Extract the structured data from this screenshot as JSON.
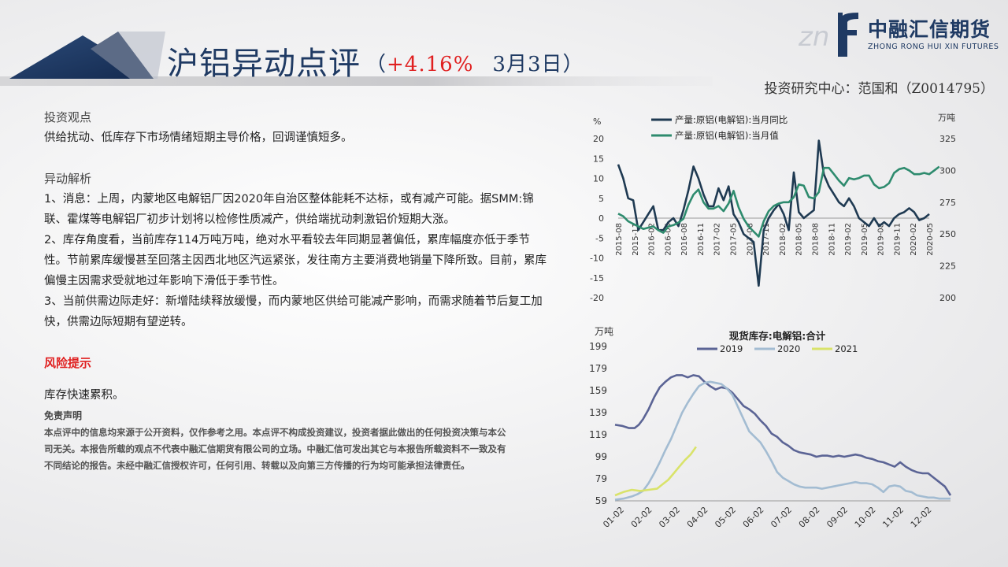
{
  "header": {
    "title": "沪铝异动点评",
    "paren_open": "（",
    "change_pct": "+4.16%",
    "date": "3月3日）",
    "author": "投资研究中心：范国和（Z0014795）",
    "logo_zh": "中融汇信期货",
    "logo_en": "ZHONG RONG HUI XIN FUTURES"
  },
  "content": {
    "view_title": "投资观点",
    "view_text": "供给扰动、低库存下市场情绪短期主导价格，回调谨慎短多。",
    "analysis_title": "异动解析",
    "analysis_1": "1、消息：上周，内蒙地区电解铝厂因2020年自治区整体能耗不达标，或有减产可能。据SMM:锦联、霍煤等电解铝厂初步计划将以检修性质减产，供给端扰动刺激铝价短期大涨。",
    "analysis_2": "2、库存角度看，当前库存114万吨万吨，绝对水平看较去年同期显著偏低，累库幅度亦低于季节性。节前累库缓慢甚至回落主因西北地区汽运紧张，发往南方主要消费地销量下降所致。目前，累库偏慢主因需求受就地过年影响下滑低于季节性。",
    "analysis_3": "3、当前供需边际走好：新增陆续释放缓慢，而内蒙地区供给可能减产影响，而需求随着节后复工加快，供需边际短期有望逆转。",
    "risk_title": "风险提示",
    "risk_text": "库存快速累积。",
    "disclaimer_title": "免责声明",
    "disclaimer_text": "本点评中的信息均来源于公开资料，仅作参考之用。本点评不构成投资建议，投资者据此做出的任何投资决策与本公司无关。本报告所载的观点不代表中融汇信期货有限公司的立场。中融汇信可发出其它与本报告所载资料不一致及有不同结论的报告。未经中融汇信授权许可，任何引用、转载以及向第三方传播的行为均可能承担法律责任。"
  },
  "colors": {
    "dark_navy": "#1f3a52",
    "teal": "#2e8b6e",
    "y2019": "#5b6495",
    "y2020": "#a3bcd2",
    "y2021": "#d9e36a",
    "title_blue": "#1f3a63",
    "red": "#e02020"
  },
  "chart_data": [
    {
      "type": "line",
      "title": "",
      "yleft_label": "%",
      "yright_label": "万吨",
      "yleft_lim": [
        -20,
        20
      ],
      "yleft_ticks": [
        -20,
        -15,
        -10,
        -5,
        0,
        5,
        10,
        15,
        20
      ],
      "yright_lim": [
        200,
        325
      ],
      "yright_ticks": [
        200,
        225,
        250,
        275,
        300,
        325
      ],
      "x_tick_labels": [
        "2015-08",
        "2015-11",
        "2016-02",
        "2016-05",
        "2016-08",
        "2016-11",
        "2017-02",
        "2017-05",
        "2017-08",
        "2017-11",
        "2018-02",
        "2018-05",
        "2018-08",
        "2018-11",
        "2019-02",
        "2019-05",
        "2019-08",
        "2019-11",
        "2020-02",
        "2020-05"
      ],
      "series": [
        {
          "name": "产量:原铝(电解铝):当月同比",
          "axis": "left",
          "color": "#1f3a52",
          "values": [
            13.5,
            10,
            5,
            4.5,
            -3,
            -1,
            1,
            3,
            -3,
            -3,
            -1,
            0,
            -2,
            2,
            7,
            13,
            10,
            6,
            3,
            3,
            7.5,
            4.5,
            8,
            1,
            -1,
            -4,
            -5,
            -6,
            -17,
            -3,
            0,
            2,
            3.5,
            1,
            -3,
            11.5,
            1.5,
            0,
            1,
            2,
            19.5,
            11,
            8,
            6,
            4,
            3,
            5,
            3,
            0,
            -1,
            -2,
            0,
            -2,
            -1,
            -2,
            0,
            1,
            1.5,
            2.5,
            1.5,
            -0.5,
            0,
            1
          ]
        },
        {
          "name": "产量:原铝(电解铝):当月值",
          "axis": "right",
          "color": "#2e8b6e",
          "values": [
            266,
            264,
            260,
            258,
            256,
            254,
            255,
            256,
            253,
            251,
            256,
            257,
            259,
            262,
            273,
            281,
            285,
            275,
            270,
            270,
            272,
            268,
            274,
            284,
            271,
            262,
            256,
            252,
            248,
            260,
            268,
            272,
            274,
            275,
            275,
            279,
            289,
            288,
            279,
            278,
            283,
            302,
            302,
            297,
            292,
            288,
            294,
            293,
            294,
            296,
            296,
            289,
            286,
            287,
            290,
            298,
            301,
            302,
            300,
            297,
            297,
            298,
            297,
            300,
            303
          ]
        }
      ]
    },
    {
      "type": "line",
      "title": "现货库存:电解铝:合计",
      "ylabel": "万吨",
      "ylim": [
        59,
        199
      ],
      "yticks": [
        59,
        79,
        99,
        119,
        139,
        159,
        179,
        199
      ],
      "x_tick_labels": [
        "01-02",
        "02-02",
        "03-02",
        "04-02",
        "05-02",
        "06-02",
        "07-02",
        "08-02",
        "09-02",
        "10-02",
        "11-02",
        "12-02"
      ],
      "x_range": [
        0,
        12
      ],
      "series": [
        {
          "name": "2019",
          "color": "#5b6495",
          "x": [
            0,
            0.25,
            0.5,
            0.7,
            0.85,
            1.0,
            1.2,
            1.4,
            1.6,
            1.8,
            2.0,
            2.2,
            2.4,
            2.6,
            2.8,
            3.0,
            3.2,
            3.4,
            3.6,
            3.8,
            4.0,
            4.2,
            4.4,
            4.6,
            4.8,
            5.0,
            5.2,
            5.4,
            5.6,
            5.8,
            6.0,
            6.2,
            6.4,
            6.6,
            6.8,
            7.0,
            7.2,
            7.4,
            7.6,
            7.8,
            8.0,
            8.2,
            8.4,
            8.6,
            8.8,
            9.0,
            9.2,
            9.4,
            9.6,
            9.8,
            10.0,
            10.2,
            10.4,
            10.6,
            10.8,
            11.0,
            11.2,
            11.4,
            11.6,
            11.8,
            12.0
          ],
          "values": [
            128,
            127,
            125,
            125,
            128,
            133,
            142,
            153,
            162,
            167,
            171,
            173,
            173,
            171,
            173,
            172,
            167,
            163,
            160,
            162,
            161,
            157,
            151,
            145,
            142,
            138,
            132,
            127,
            120,
            117,
            112,
            109,
            105,
            103,
            102,
            101,
            99,
            100,
            100,
            99,
            100,
            99,
            100,
            101,
            100,
            98,
            97,
            95,
            94,
            92,
            90,
            94,
            90,
            87,
            85,
            84,
            84,
            80,
            76,
            72,
            64
          ]
        },
        {
          "name": "2020",
          "color": "#a3bcd2",
          "x": [
            0,
            0.3,
            0.6,
            0.8,
            1.0,
            1.2,
            1.4,
            1.6,
            1.8,
            2.0,
            2.2,
            2.4,
            2.6,
            2.8,
            3.0,
            3.2,
            3.4,
            3.6,
            3.8,
            4.0,
            4.2,
            4.4,
            4.6,
            4.8,
            5.0,
            5.2,
            5.4,
            5.6,
            5.8,
            6.0,
            6.2,
            6.4,
            6.6,
            6.8,
            7.0,
            7.2,
            7.4,
            7.6,
            7.8,
            8.0,
            8.2,
            8.4,
            8.6,
            8.8,
            9.0,
            9.2,
            9.4,
            9.6,
            9.8,
            10.0,
            10.2,
            10.4,
            10.6,
            10.8,
            11.0,
            11.2,
            11.4,
            11.6,
            11.8,
            12.0
          ],
          "values": [
            60,
            61,
            63,
            65,
            68,
            75,
            84,
            94,
            105,
            115,
            127,
            139,
            148,
            156,
            163,
            166,
            167,
            166,
            165,
            161,
            155,
            144,
            133,
            122,
            117,
            112,
            104,
            95,
            85,
            80,
            77,
            74,
            72,
            71,
            71,
            71,
            70,
            71,
            72,
            73,
            74,
            75,
            76,
            75,
            75,
            74,
            71,
            67,
            72,
            73,
            72,
            68,
            67,
            64,
            63,
            62,
            62,
            61,
            61,
            61
          ]
        },
        {
          "name": "2021",
          "color": "#d9e36a",
          "x": [
            0,
            0.3,
            0.6,
            0.9,
            1.2,
            1.5,
            1.7,
            1.9,
            2.1,
            2.3,
            2.5,
            2.7,
            2.9
          ],
          "values": [
            64,
            67,
            69,
            68,
            69,
            70,
            74,
            78,
            84,
            90,
            96,
            101,
            108
          ]
        }
      ]
    }
  ]
}
